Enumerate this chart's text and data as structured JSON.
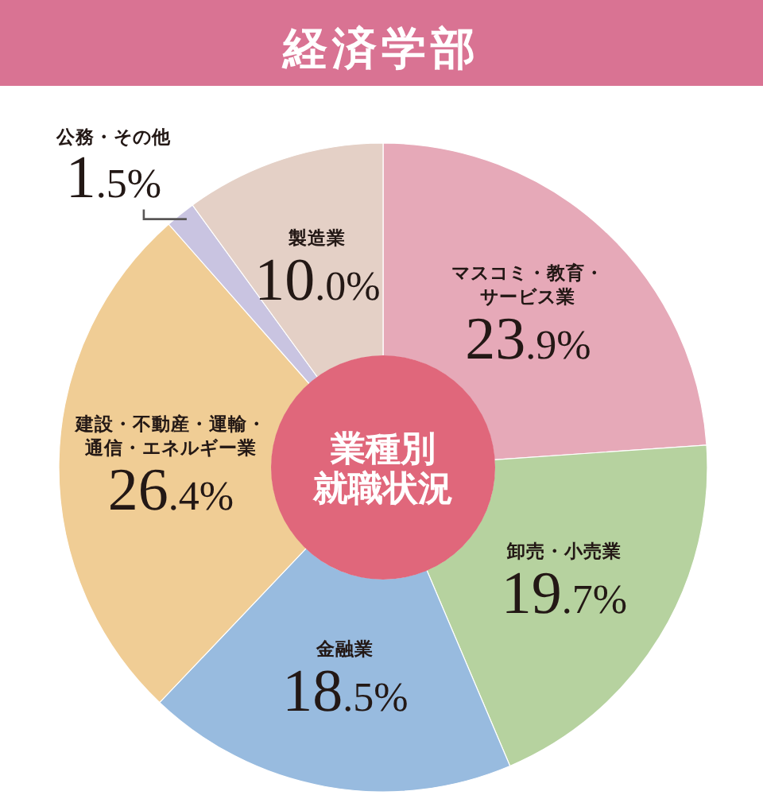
{
  "chart_data": {
    "type": "donut",
    "title": "経済学部",
    "subtitle": "業種別就職状況",
    "categories": [
      "マスコミ・教育・サービス業",
      "卸売・小売業",
      "金融業",
      "建設・不動産・運輸・通信・エネルギー業",
      "公務・その他",
      "製造業"
    ],
    "values": [
      23.9,
      19.7,
      18.5,
      26.4,
      1.5,
      10.0
    ],
    "colors": [
      "#e6a9b8",
      "#b6d29f",
      "#98bbdf",
      "#f0cd95",
      "#c9c4e1",
      "#e4d0c6"
    ],
    "value_labels": [
      "23.9%",
      "19.7%",
      "18.5%",
      "26.4%",
      "1.5%",
      "10.0%"
    ]
  }
}
